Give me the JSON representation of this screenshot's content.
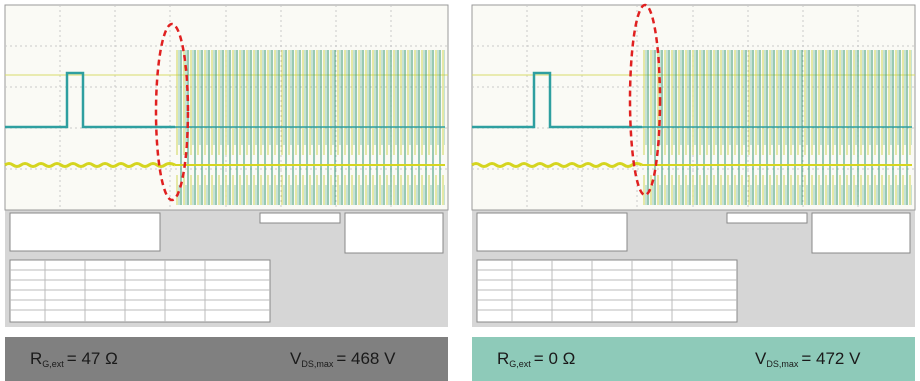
{
  "panels": [
    {
      "r_label": "R",
      "r_sub": "G,ext",
      "r_value": "= 47 Ω",
      "v_label": "V",
      "v_sub": "DS,max",
      "v_value": "= 468 V"
    },
    {
      "r_label": "R",
      "r_sub": "G,ext",
      "r_value": "= 0 Ω",
      "v_label": "V",
      "v_sub": "DS,max",
      "v_value": "= 472 V"
    }
  ]
}
